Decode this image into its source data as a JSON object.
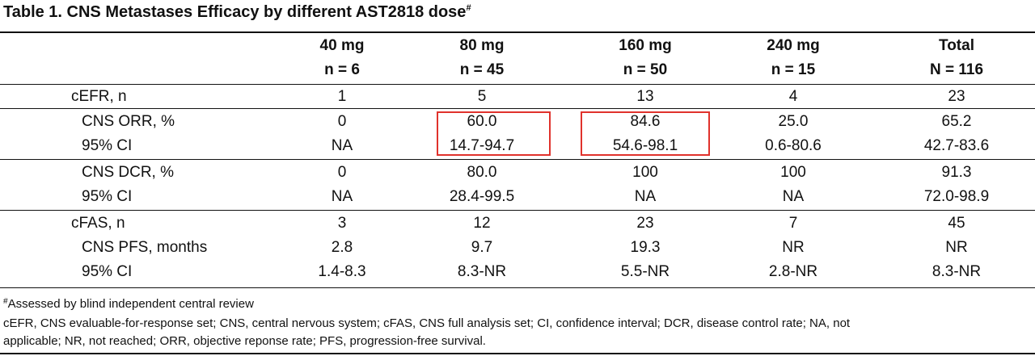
{
  "title": {
    "text": "Table 1. CNS Metastases Efficacy by different AST2818 dose",
    "mark": "#"
  },
  "header": {
    "doses": [
      "40 mg",
      "80 mg",
      "160 mg",
      "240 mg",
      "Total"
    ],
    "ns": [
      "n = 6",
      "n = 45",
      "n = 50",
      "n = 15",
      "N = 116"
    ]
  },
  "rows": [
    {
      "label": "cEFR, n",
      "values": [
        "1",
        "5",
        "13",
        "4",
        "23"
      ]
    },
    {
      "label": "CNS ORR, %",
      "values": [
        "0",
        "60.0",
        "84.6",
        "25.0",
        "65.2"
      ]
    },
    {
      "label": "95% CI",
      "values": [
        "NA",
        "14.7-94.7",
        "54.6-98.1",
        "0.6-80.6",
        "42.7-83.6"
      ]
    },
    {
      "label": "CNS DCR, %",
      "values": [
        "0",
        "80.0",
        "100",
        "100",
        "91.3"
      ]
    },
    {
      "label": "95% CI",
      "values": [
        "NA",
        "28.4-99.5",
        "NA",
        "NA",
        "72.0-98.9"
      ]
    },
    {
      "label": "cFAS, n",
      "values": [
        "3",
        "12",
        "23",
        "7",
        "45"
      ]
    },
    {
      "label": "CNS PFS, months",
      "values": [
        "2.8",
        "9.7",
        "19.3",
        "NR",
        "NR"
      ]
    },
    {
      "label": "95% CI",
      "values": [
        "1.4-8.3",
        "8.3-NR",
        "5.5-NR",
        "2.8-NR",
        "8.3-NR"
      ]
    }
  ],
  "highlight_color": "#e0322c",
  "footnotes": {
    "mark": "#",
    "line1": "Assessed by blind independent central review",
    "line2": "cEFR, CNS evaluable-for-response set; CNS, central nervous system; cFAS, CNS full analysis set; CI, confidence interval; DCR, disease control rate; NA, not",
    "line3": "applicable; NR, not reached; ORR, objective reponse rate; PFS, progression-free survival."
  }
}
